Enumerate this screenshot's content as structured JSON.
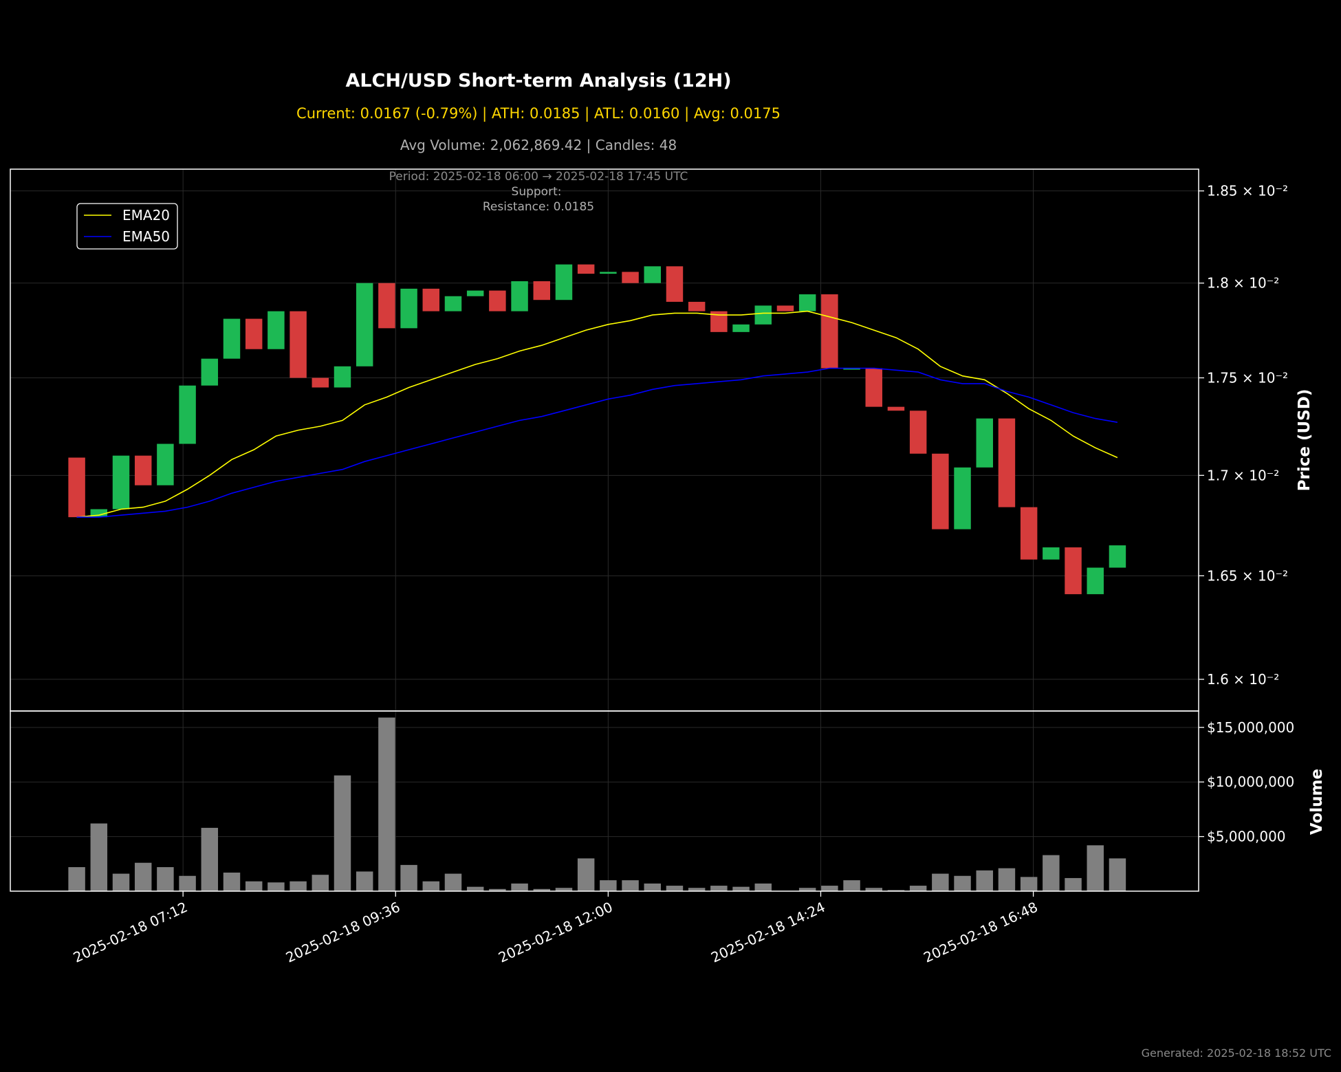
{
  "header": {
    "title": "ALCH/USD Short-term Analysis (12H)",
    "stats_line": "Current: 0.0167 (-0.79%) | ATH: 0.0185 | ATL: 0.0160 | Avg: 0.0175",
    "volume_line": "Avg Volume: 2,062,869.42 | Candles: 48",
    "period_line": "Period: 2025-02-18 06:00 → 2025-02-18 17:45 UTC",
    "support_line": "Support:",
    "resistance_line": "Resistance: 0.0185"
  },
  "footer": {
    "generated": "Generated: 2025-02-18 18:52 UTC"
  },
  "colors": {
    "background": "#000000",
    "up": "#1db954",
    "down": "#d63c3c",
    "ema20": "#ffff00",
    "ema50": "#0000ff",
    "volume": "#808080",
    "title": "#ffffff",
    "stats": "#ffd700",
    "subtle": "#b0b0b0",
    "dim": "#8a8a8a"
  },
  "chart_data": [
    {
      "type": "candlestick",
      "name": "price-panel",
      "ylabel": "Price (USD)",
      "yscale": "log",
      "ylim": [
        0.01585,
        0.01862
      ],
      "yticks": [
        {
          "value": 0.016,
          "label": "1.6 × 10⁻²"
        },
        {
          "value": 0.0165,
          "label": "1.65 × 10⁻²"
        },
        {
          "value": 0.017,
          "label": "1.7 × 10⁻²"
        },
        {
          "value": 0.0175,
          "label": "1.75 × 10⁻²"
        },
        {
          "value": 0.018,
          "label": "1.8 × 10⁻²"
        },
        {
          "value": 0.0185,
          "label": "1.85 × 10⁻²"
        }
      ],
      "x_start": "2025-02-18 06:00",
      "x_interval_minutes": 15,
      "xlim": [
        "2025-02-18 05:15",
        "2025-02-18 18:40"
      ],
      "xticks": [
        {
          "time": "2025-02-18 07:12",
          "label": "2025-02-18 07:12"
        },
        {
          "time": "2025-02-18 09:36",
          "label": "2025-02-18 09:36"
        },
        {
          "time": "2025-02-18 12:00",
          "label": "2025-02-18 12:00"
        },
        {
          "time": "2025-02-18 14:24",
          "label": "2025-02-18 14:24"
        },
        {
          "time": "2025-02-18 16:48",
          "label": "2025-02-18 16:48"
        }
      ],
      "grid": true,
      "legend": {
        "position": "top-left",
        "entries": [
          {
            "label": "EMA20",
            "color": "#ffff00"
          },
          {
            "label": "EMA50",
            "color": "#0000ff"
          }
        ]
      },
      "candles": [
        {
          "open": 0.01709,
          "close": 0.01679
        },
        {
          "open": 0.01679,
          "close": 0.01683
        },
        {
          "open": 0.01683,
          "close": 0.0171
        },
        {
          "open": 0.0171,
          "close": 0.01695
        },
        {
          "open": 0.01695,
          "close": 0.01716
        },
        {
          "open": 0.01716,
          "close": 0.01746
        },
        {
          "open": 0.01746,
          "close": 0.0176
        },
        {
          "open": 0.0176,
          "close": 0.01781
        },
        {
          "open": 0.01781,
          "close": 0.01765
        },
        {
          "open": 0.01765,
          "close": 0.01785
        },
        {
          "open": 0.01785,
          "close": 0.0175
        },
        {
          "open": 0.0175,
          "close": 0.01745
        },
        {
          "open": 0.01745,
          "close": 0.01756
        },
        {
          "open": 0.01756,
          "close": 0.018
        },
        {
          "open": 0.018,
          "close": 0.01776
        },
        {
          "open": 0.01776,
          "close": 0.01797
        },
        {
          "open": 0.01797,
          "close": 0.01785
        },
        {
          "open": 0.01785,
          "close": 0.01793
        },
        {
          "open": 0.01793,
          "close": 0.01796
        },
        {
          "open": 0.01796,
          "close": 0.01785
        },
        {
          "open": 0.01785,
          "close": 0.01801
        },
        {
          "open": 0.01801,
          "close": 0.01791
        },
        {
          "open": 0.01791,
          "close": 0.0181
        },
        {
          "open": 0.0181,
          "close": 0.01805
        },
        {
          "open": 0.01805,
          "close": 0.01806
        },
        {
          "open": 0.01806,
          "close": 0.018
        },
        {
          "open": 0.018,
          "close": 0.01809
        },
        {
          "open": 0.01809,
          "close": 0.0179
        },
        {
          "open": 0.0179,
          "close": 0.01785
        },
        {
          "open": 0.01785,
          "close": 0.01774
        },
        {
          "open": 0.01774,
          "close": 0.01778
        },
        {
          "open": 0.01778,
          "close": 0.01788
        },
        {
          "open": 0.01788,
          "close": 0.01785
        },
        {
          "open": 0.01785,
          "close": 0.01794
        },
        {
          "open": 0.01794,
          "close": 0.01755
        },
        {
          "open": 0.01755,
          "close": 0.01755
        },
        {
          "open": 0.01755,
          "close": 0.01735
        },
        {
          "open": 0.01735,
          "close": 0.01733
        },
        {
          "open": 0.01733,
          "close": 0.01711
        },
        {
          "open": 0.01711,
          "close": 0.01673
        },
        {
          "open": 0.01673,
          "close": 0.01704
        },
        {
          "open": 0.01704,
          "close": 0.01729
        },
        {
          "open": 0.01729,
          "close": 0.01684
        },
        {
          "open": 0.01684,
          "close": 0.01658
        },
        {
          "open": 0.01658,
          "close": 0.01664
        },
        {
          "open": 0.01664,
          "close": 0.01641
        },
        {
          "open": 0.01641,
          "close": 0.01654
        },
        {
          "open": 0.01654,
          "close": 0.01665
        }
      ],
      "ema20": [
        0.01679,
        0.0168,
        0.01683,
        0.01684,
        0.01687,
        0.01693,
        0.017,
        0.01708,
        0.01713,
        0.0172,
        0.01723,
        0.01725,
        0.01728,
        0.01736,
        0.0174,
        0.01745,
        0.01749,
        0.01753,
        0.01757,
        0.0176,
        0.01764,
        0.01767,
        0.01771,
        0.01775,
        0.01778,
        0.0178,
        0.01783,
        0.01784,
        0.01784,
        0.01783,
        0.01783,
        0.01784,
        0.01784,
        0.01785,
        0.01782,
        0.01779,
        0.01775,
        0.01771,
        0.01765,
        0.01756,
        0.01751,
        0.01749,
        0.01742,
        0.01734,
        0.01728,
        0.0172,
        0.01714,
        0.01709
      ],
      "ema50": [
        0.01679,
        0.01679,
        0.0168,
        0.01681,
        0.01682,
        0.01684,
        0.01687,
        0.01691,
        0.01694,
        0.01697,
        0.01699,
        0.01701,
        0.01703,
        0.01707,
        0.0171,
        0.01713,
        0.01716,
        0.01719,
        0.01722,
        0.01725,
        0.01728,
        0.0173,
        0.01733,
        0.01736,
        0.01739,
        0.01741,
        0.01744,
        0.01746,
        0.01747,
        0.01748,
        0.01749,
        0.01751,
        0.01752,
        0.01753,
        0.01755,
        0.01755,
        0.01755,
        0.01754,
        0.01753,
        0.01749,
        0.01747,
        0.01747,
        0.01743,
        0.0174,
        0.01736,
        0.01732,
        0.01729,
        0.01727
      ]
    },
    {
      "type": "bar",
      "name": "volume-panel",
      "ylabel": "Volume",
      "ylim": [
        0,
        16500000
      ],
      "yticks": [
        {
          "value": 5000000,
          "label": "$5,000,000"
        },
        {
          "value": 10000000,
          "label": "$10,000,000"
        },
        {
          "value": 15000000,
          "label": "$15,000,000"
        }
      ],
      "grid": true,
      "values": [
        2200000,
        6200000,
        1600000,
        2600000,
        2200000,
        1400000,
        5800000,
        1700000,
        900000,
        800000,
        900000,
        1500000,
        10600000,
        1800000,
        15900000,
        2400000,
        900000,
        1600000,
        400000,
        200000,
        700000,
        200000,
        300000,
        3000000,
        1000000,
        1000000,
        700000,
        500000,
        300000,
        500000,
        400000,
        700000,
        0,
        300000,
        500000,
        1000000,
        300000,
        100000,
        500000,
        1600000,
        1400000,
        1900000,
        2100000,
        1300000,
        3300000,
        1200000,
        4200000,
        3000000
      ]
    }
  ]
}
